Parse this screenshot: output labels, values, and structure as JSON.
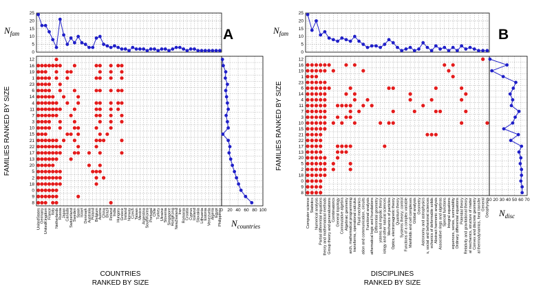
{
  "chart_data": [
    {
      "type": "scatter",
      "panel_label": "A",
      "top_ylabel": "N",
      "top_ylabel_sub": "fam",
      "side_xlabel": "N",
      "side_xlabel_sub": "countries",
      "xlabel_line1": "COUNTRIES",
      "xlabel_line2": "RANKED BY SIZE",
      "ylabel": "FAMILIES RANKED BY SIZE",
      "top_yticks": [
        0,
        5,
        10,
        15,
        20,
        25
      ],
      "top_ylim": [
        0,
        25
      ],
      "side_xticks": [
        0,
        20,
        40,
        60,
        80,
        100
      ],
      "side_xlim": [
        0,
        100
      ],
      "categories": [
        "UnitedStates",
        "Germany",
        "UnitedKingdom",
        "France",
        "Italy",
        "Netherlands",
        "Russia",
        "Japan",
        "Canada",
        "Switzerland",
        "Sweden",
        "Spain",
        "Israel",
        "Denmark",
        "Australia",
        "Poland",
        "Belgium",
        "Austria",
        "China",
        "Brazil",
        "Finland",
        "India",
        "Hungary",
        "Greece",
        "Ireland",
        "Norway",
        "Czech",
        "Taiwan",
        "Mexico",
        "Argentina",
        "SouthKorea",
        "Portugal",
        "Chile",
        "Turkey",
        "Ukraine",
        "Slovenia",
        "Singapore",
        "HongKong",
        "NewZealand",
        "Iran",
        "Romania",
        "Croatia",
        "Cyprus",
        "Iceland",
        "Slovakia",
        "Lithuania",
        "Estonia",
        "Venezuela",
        "Algeria",
        "Egypt",
        "Philippines"
      ],
      "x_tick_labels": [
        "UnitedStates",
        "Germany",
        "UnitedKingdom",
        "France",
        "Italy",
        "Netherlands",
        "Russia",
        "Japan",
        "Canada",
        "Switzerland",
        "Sweden",
        "Spain",
        "Israel",
        "Denmark",
        "Australia",
        "Poland",
        "Belgium",
        "Austria",
        "China",
        "Brazil",
        "Finland",
        "India",
        "Hungary",
        "Greece",
        "Ireland",
        "Norway",
        "Czech",
        "Taiwan",
        "Mexico",
        "Argentina",
        "SouthKorea",
        "Portugal",
        "Chile",
        "Turkey",
        "Ukraine",
        "Slovenia",
        "Singapore",
        "HongKong",
        "NewZealand",
        "Iran",
        "Romania",
        "Croatia",
        "Cyprus",
        "Iceland",
        "Slovakia",
        "Lithuania",
        "Estonia",
        "Venezuela",
        "Algeria",
        "Egypt",
        "Philippines"
      ],
      "families": [
        "12",
        "16",
        "19",
        "1",
        "23",
        "6",
        "14",
        "4",
        "11",
        "7",
        "3",
        "10",
        "15",
        "21",
        "22",
        "17",
        "13",
        "20",
        "5",
        "2",
        "18",
        "0",
        "9",
        "8"
      ],
      "n_fam": [
        24,
        17,
        17,
        13,
        8,
        3,
        21,
        11,
        5,
        9,
        6,
        10,
        6,
        5,
        3,
        3,
        9,
        10,
        5,
        4,
        3,
        4,
        3,
        2,
        2,
        1,
        3,
        2,
        2,
        2,
        1,
        2,
        2,
        1,
        2,
        2,
        1,
        2,
        3,
        3,
        2,
        1,
        2,
        2,
        1,
        1,
        1,
        1,
        1,
        1,
        1
      ],
      "n_countries": [
        2,
        4,
        10,
        9,
        14,
        10,
        12,
        14,
        16,
        11,
        14,
        16,
        3,
        16,
        20,
        18,
        22,
        26,
        31,
        36,
        41,
        47,
        58,
        73
      ],
      "matrix": [
        "000001000000000000000000000000000000000000000000000",
        "111111100010000011001011000000000000000000000000000",
        "111001001100000001001001000000000000000000000000000",
        "111101001000000011001001000000000000000000000000000",
        "111100100000000000000000000000000000000000000000000",
        "111100100010000011001011000000000000000000000000000",
        "111110010001000000000000000000000000000000000000000",
        "111111001001000011001011000000000000000000000000000",
        "111111100010000011001010000000000000000000000000000",
        "111111000100000011001001000000000000000000000000000",
        "111100100010000001001001000000000000000000000000000",
        "111100100011000010001000000000000000000000000000000",
        "111000001101000001010000000000000000000000000000000",
        "111111010010000011100001000000000000000000000000000",
        "111111100001000010000000000000000000000000000000000",
        "111111100011001001000001000000000000000000000000000",
        "111111000100000000000000000000000000000000000000000",
        "111110000000001001000000000000000000000000000000000",
        "111111100000000111000000000000000000000000000000000",
        "111111100000000010100000000000000000000000000000000",
        "111111100000000010000000000000000000000000000000000",
        "111111000000000000000000000000000000000000000000000",
        "111111000001000000000000000000000000000000000000000",
        "111011000000000000001000000000000000000000000000000"
      ]
    },
    {
      "type": "scatter",
      "panel_label": "B",
      "top_ylabel": "N",
      "top_ylabel_sub": "fam",
      "side_xlabel": "N",
      "side_xlabel_sub": "disc",
      "xlabel_line1": "DISCIPLINES",
      "xlabel_line2": "RANKED BY SIZE",
      "ylabel": "FAMILIES RANKED BY SIZE",
      "top_yticks": [
        0,
        5,
        10,
        15,
        20,
        25
      ],
      "top_ylim": [
        0,
        25
      ],
      "side_xticks": [
        10,
        20,
        30,
        40,
        50,
        60,
        70
      ],
      "side_xlim": [
        10,
        70
      ],
      "categories": [
        "Computer science",
        "Statistics",
        "Numerical analysis",
        "Partial differential equations",
        "Theory and mathematical methods",
        "Group theory and generalizations",
        "Combinatorics",
        "General topology",
        "Commutative algebra",
        "Algebraic geometry",
        "Research, mathematical programming",
        "Integral transforms, operational calculus",
        "Fluid mechanics",
        "Information and communication, circuits",
        "Functional analysis",
        "Mathematical logic and foundations",
        "Differential geometry",
        "Dynamical systems and ergodic theory",
        "Biology and other natural sciences",
        "Mechanics of particles",
        "Optics, electromagnetic theory",
        "Quantum theory",
        "Systems theory; control",
        "Functions of a complex variable",
        "Manifolds and cell complexes",
        "Global analysis",
        "Geometry",
        "Astronomy and astrophysics",
        "Game theory, economics, social and behavioral sciences",
        "Mechanics of deformable solids",
        "Abstract harmonic analysis",
        "Associative rings and algebras",
        "Special functions",
        "Integral equations",
        "Sequences, series, summability",
        "Ordinary differential equations",
        "Potential theory",
        "Relativity and gravitational theory",
        "Statistical mechanics, structure of matter",
        "Convex and discrete geometry",
        "Classical thermodynamics, heat transfer",
        "General",
        "Geophysics"
      ],
      "x_tick_labels": [
        "Computer science",
        "Statistics",
        "Numerical analysis",
        "Partial differential equations",
        "theory and mathematical methods",
        "Group theory and generalizations",
        "Combinatorics",
        "General topology",
        "Commutative algebra",
        "Algebraic geometry",
        "arch, mathematical programming",
        "transforms, operational calculus",
        "Fluid mechanics",
        "ation and communication, circuits",
        "Functional analysis",
        "athematical logic and foundations",
        "Differential geometry",
        "ystems and ergodic theory",
        "iology and other natural sciences",
        "Mechanics of particles",
        "Optics, electromagnetic theory",
        "Quantum theory",
        "Systems theory; control",
        "Functions of a complex variable",
        "Manifolds and cell complexes",
        "Global analysis",
        "Geometry",
        "Astronomy and astrophysics",
        "s, social and behavioral sciences",
        "echanics of deformable solids",
        "Abstract harmonic analysis",
        "Associative rings and algebras",
        "Special functions",
        "Integral equations",
        "equences, series, summability",
        "Ordinary differential equations",
        "Potential theory",
        "Relativity and gravitational theory",
        "al mechanics, structure of matter",
        "Convex and discrete geometry",
        "al thermodynamics, heat transfer",
        "General",
        "Geophysics"
      ],
      "families": [
        "12",
        "16",
        "19",
        "1",
        "23",
        "6",
        "14",
        "4",
        "11",
        "7",
        "3",
        "10",
        "15",
        "21",
        "22",
        "17",
        "13",
        "20",
        "5",
        "2",
        "18",
        "0",
        "9",
        "8"
      ],
      "n_fam": [
        24,
        14,
        20,
        11,
        13,
        9,
        8,
        7,
        9,
        8,
        7,
        10,
        7,
        5,
        3,
        4,
        4,
        3,
        5,
        8,
        6,
        3,
        1,
        2,
        3,
        1,
        2,
        6,
        3,
        1,
        4,
        2,
        3,
        1,
        3,
        1,
        4,
        2,
        3,
        2,
        1,
        1,
        1
      ],
      "n_disc": [
        11,
        38,
        14,
        32,
        52,
        48,
        43,
        47,
        45,
        57,
        51,
        47,
        33,
        56,
        44,
        61,
        57,
        60,
        59,
        61,
        61,
        60,
        62,
        62
      ],
      "matrix": [
        "0000000000000000000000000000000000000000010",
        "1111110001010000000000000000000010100000000",
        "1111101000000100000000000000000001000000000",
        "1110000000000000000000000000000000100000000",
        "1111100000000000000000000000000000000000000",
        "1111110000100000000110000000001000001000000",
        "1111100001010000000000001000000000000100000",
        "1111100000010010000000001000010000001000000",
        "1111100111100101000000000001000000000000000",
        "1111100000101000000010000100001100000100000",
        "1111100101100000000000000000000000000000000",
        "1111101010010000010110000000000000001000001",
        "1111100000000000000000000000000000000000000",
        "1111000000000000000000000000111000000000000",
        "1111000000000000000000000000000000000000000",
        "1111000111100000001000000000000000000000000",
        "1111000111000000000000000000000000000000000",
        "1111100100000000000000000000000000000000000",
        "1111101000100000000000000000000000000000000",
        "1111101000100000000000000000000000000000000",
        "1111100000000000000000000000000000000000000",
        "1111000000000000000000000000000000000000000",
        "1111000000000000000000000000000000000000000",
        "1111000000000000000000000000000000000000000"
      ]
    }
  ]
}
